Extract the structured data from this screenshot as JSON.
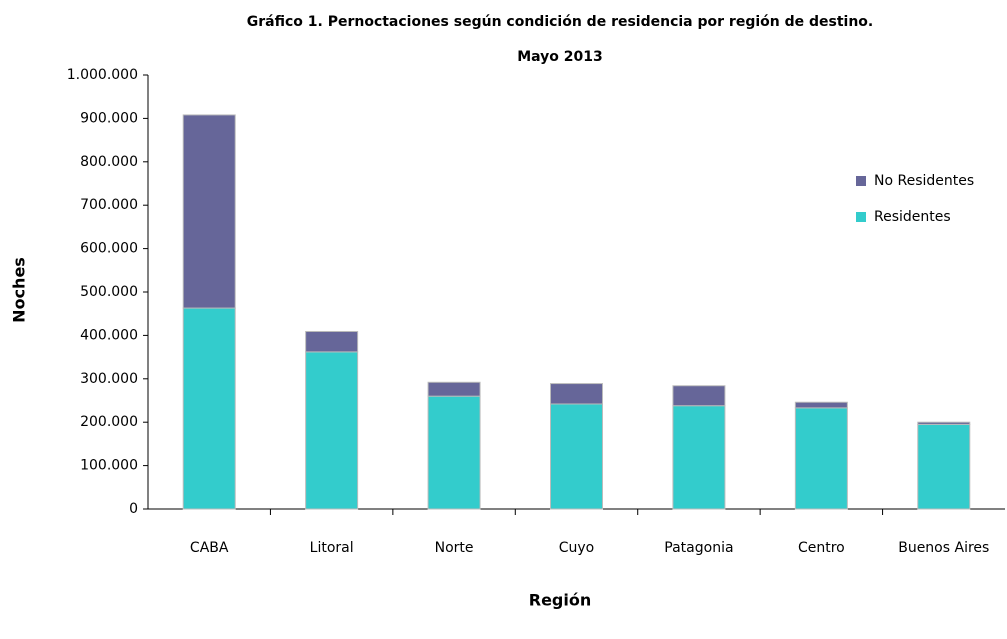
{
  "chart_data": {
    "type": "stacked_bar",
    "title": "Gráfico 1. Pernoctaciones según condición de residencia por región de destino.",
    "subtitle": "Mayo 2013",
    "x_label": "Región",
    "y_label": "Noches",
    "categories": [
      "CABA",
      "Litoral",
      "Norte",
      "Cuyo",
      "Patagonia",
      "Centro",
      "Buenos Aires"
    ],
    "series": [
      {
        "name": "Residentes",
        "color": "#33cccc",
        "values": [
          463000,
          362000,
          260000,
          242000,
          238000,
          233000,
          195000
        ]
      },
      {
        "name": "No Residentes",
        "color": "#666699",
        "values": [
          445000,
          47000,
          32000,
          47000,
          46000,
          13000,
          5000
        ]
      }
    ],
    "ylim": [
      0,
      1000000
    ],
    "yticks": [
      0,
      {
        "value": 100000,
        "label": "100.000"
      },
      {
        "value": 200000,
        "label": "200.000"
      },
      {
        "value": 300000,
        "label": "300.000"
      },
      {
        "value": 400000,
        "label": "400.000"
      },
      {
        "value": 500000,
        "label": "500.000"
      },
      {
        "value": 600000,
        "label": "600.000"
      },
      {
        "value": 700000,
        "label": "700.000"
      },
      {
        "value": 800000,
        "label": "800.000"
      },
      {
        "value": 900000,
        "label": "900.000"
      },
      {
        "value": 1000000,
        "label": "1.000.000"
      }
    ],
    "legend": "right",
    "grid": false
  }
}
